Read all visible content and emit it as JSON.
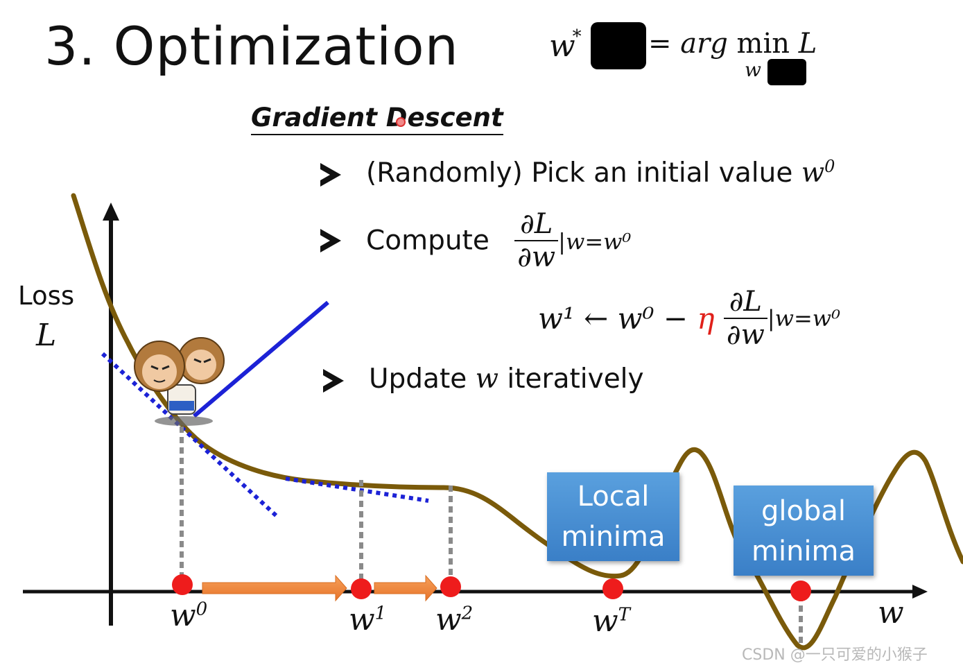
{
  "slide": {
    "title": "3. Optimization",
    "formula_top": {
      "lhs": "w",
      "lhs_sup": "*",
      "rhs": "= arg min",
      "rhs_var": "L",
      "rhs_sub": "w"
    },
    "section_title": "Gradient Descent",
    "bullets": [
      {
        "text": "(Randomly) Pick an initial value ",
        "var": "w",
        "sup": "0"
      },
      {
        "text": "Compute",
        "num": "∂L",
        "den": "∂w",
        "eval": "|w=w⁰"
      },
      {
        "text": "Update ",
        "var": "w",
        "rest": " iteratively"
      }
    ],
    "update_equation": {
      "lhs": "w¹ ← w⁰ − ",
      "eta": "η",
      "num": "∂L",
      "den": "∂w",
      "eval": "|w=w⁰"
    }
  },
  "plot": {
    "y_label": "Loss",
    "y_var": "L",
    "x_var": "w",
    "points": [
      {
        "label": "w",
        "sup": "0"
      },
      {
        "label": "w",
        "sup": "1"
      },
      {
        "label": "w",
        "sup": "2"
      },
      {
        "label": "w",
        "sup": "T"
      }
    ],
    "local_box": [
      "Local",
      "minima"
    ],
    "global_box": [
      "global",
      "minima"
    ],
    "colors": {
      "curve": "#7a5a0a",
      "tangent": "#1c22d6",
      "step_arrow": "#f0843a",
      "point": "#ee1c1c",
      "box": "#4a90d9"
    }
  },
  "watermark": "CSDN @一只可爱的小猴子"
}
